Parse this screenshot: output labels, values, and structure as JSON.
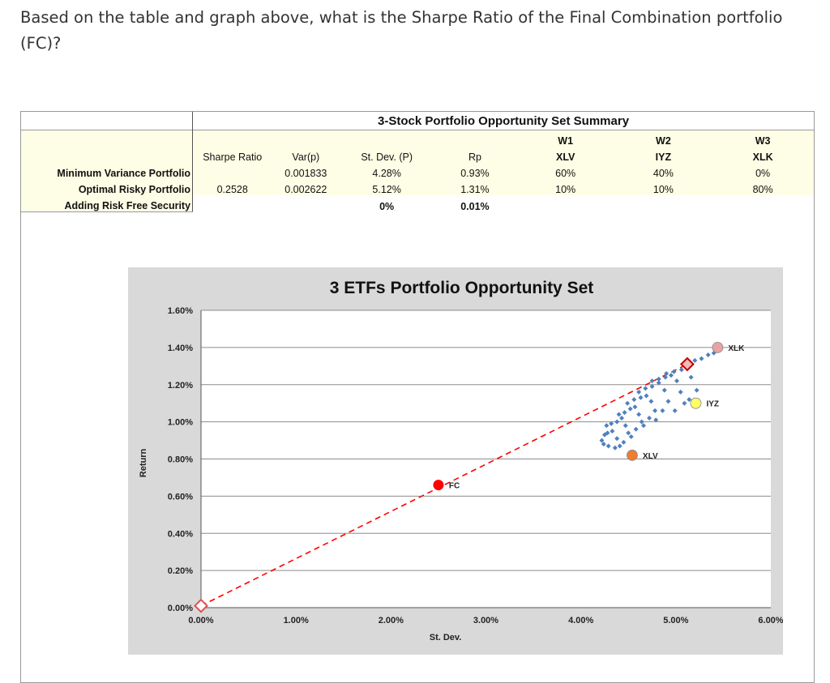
{
  "question": "Based on the table and graph above, what is the Sharpe Ratio of the Final Combination portfolio (FC)?",
  "table": {
    "title": "3-Stock Portfolio Opportunity Set Summary",
    "headers": {
      "sharpe": "Sharpe Ratio",
      "var": "Var(p)",
      "sd": "St. Dev. (P)",
      "rp": "Rp",
      "w1": "W1",
      "w1_ticker": "XLV",
      "w2": "W2",
      "w2_ticker": "IYZ",
      "w3": "W3",
      "w3_ticker": "XLK"
    },
    "rows": [
      {
        "label": "Minimum Variance Portfolio",
        "sharpe": "",
        "var": "0.001833",
        "sd": "4.28%",
        "rp": "0.93%",
        "w1": "60%",
        "w2": "40%",
        "w3": "0%"
      },
      {
        "label": "Optimal Risky Portfolio",
        "sharpe": "0.2528",
        "var": "0.002622",
        "sd": "5.12%",
        "rp": "1.31%",
        "w1": "10%",
        "w2": "10%",
        "w3": "80%"
      },
      {
        "label": "Adding Risk Free Security",
        "sharpe": "",
        "var": "",
        "sd": "0%",
        "rp": "0.01%",
        "w1": "",
        "w2": "",
        "w3": ""
      }
    ]
  },
  "chart_data": {
    "type": "scatter",
    "title": "3 ETFs Portfolio Opportunity Set",
    "xlabel": "St. Dev.",
    "ylabel": "Return",
    "xlim": [
      0,
      0.06
    ],
    "ylim": [
      0,
      0.016
    ],
    "x_ticks": [
      "0.00%",
      "1.00%",
      "2.00%",
      "3.00%",
      "4.00%",
      "5.00%",
      "6.00%"
    ],
    "y_ticks": [
      "0.00%",
      "0.20%",
      "0.40%",
      "0.60%",
      "0.80%",
      "1.00%",
      "1.20%",
      "1.40%",
      "1.60%"
    ],
    "grid": true,
    "opportunity_set": [
      [
        0.0424,
        0.0088
      ],
      [
        0.0422,
        0.009
      ],
      [
        0.0425,
        0.0093
      ],
      [
        0.0428,
        0.0094
      ],
      [
        0.0433,
        0.0095
      ],
      [
        0.0438,
        0.0091
      ],
      [
        0.0441,
        0.0087
      ],
      [
        0.0436,
        0.0086
      ],
      [
        0.0429,
        0.0087
      ],
      [
        0.0427,
        0.0098
      ],
      [
        0.0432,
        0.0099
      ],
      [
        0.0438,
        0.01
      ],
      [
        0.0443,
        0.0102
      ],
      [
        0.0447,
        0.0098
      ],
      [
        0.045,
        0.0094
      ],
      [
        0.0445,
        0.0089
      ],
      [
        0.044,
        0.0104
      ],
      [
        0.0446,
        0.0105
      ],
      [
        0.0452,
        0.0107
      ],
      [
        0.0457,
        0.0108
      ],
      [
        0.0461,
        0.0104
      ],
      [
        0.0464,
        0.01
      ],
      [
        0.0458,
        0.0096
      ],
      [
        0.0453,
        0.0092
      ],
      [
        0.0449,
        0.011
      ],
      [
        0.0456,
        0.0112
      ],
      [
        0.0463,
        0.0113
      ],
      [
        0.0469,
        0.0114
      ],
      [
        0.0474,
        0.0111
      ],
      [
        0.0478,
        0.0106
      ],
      [
        0.0472,
        0.0102
      ],
      [
        0.0466,
        0.0098
      ],
      [
        0.0461,
        0.0116
      ],
      [
        0.0468,
        0.0118
      ],
      [
        0.0475,
        0.0119
      ],
      [
        0.0482,
        0.0121
      ],
      [
        0.0488,
        0.0117
      ],
      [
        0.0492,
        0.0111
      ],
      [
        0.0486,
        0.0106
      ],
      [
        0.0479,
        0.0101
      ],
      [
        0.0475,
        0.0122
      ],
      [
        0.0482,
        0.0123
      ],
      [
        0.0489,
        0.0124
      ],
      [
        0.0495,
        0.0125
      ],
      [
        0.0501,
        0.0122
      ],
      [
        0.0505,
        0.0116
      ],
      [
        0.0509,
        0.011
      ],
      [
        0.0499,
        0.0106
      ],
      [
        0.049,
        0.0126
      ],
      [
        0.0498,
        0.0127
      ],
      [
        0.0506,
        0.0128
      ],
      [
        0.052,
        0.0133
      ],
      [
        0.0527,
        0.0134
      ],
      [
        0.0534,
        0.0136
      ],
      [
        0.054,
        0.0137
      ],
      [
        0.0516,
        0.0124
      ],
      [
        0.0522,
        0.0117
      ],
      [
        0.0514,
        0.0112
      ]
    ],
    "points": [
      {
        "name": "XLK",
        "x": 0.0544,
        "y": 0.014,
        "color": "#e8a3a3"
      },
      {
        "name": "IYZ",
        "x": 0.0521,
        "y": 0.011,
        "color": "#ffff66"
      },
      {
        "name": "XLV",
        "x": 0.0454,
        "y": 0.0082,
        "color": "#ed7d31"
      },
      {
        "name": "FC",
        "x": 0.025,
        "y": 0.0066,
        "color": "#ff0000"
      }
    ],
    "optimal_risky": {
      "x": 0.0512,
      "y": 0.0131
    },
    "risk_free": {
      "x": 0.0,
      "y": 0.0001
    },
    "cal_color": "#ff0000",
    "set_color": "#4f81bd"
  }
}
